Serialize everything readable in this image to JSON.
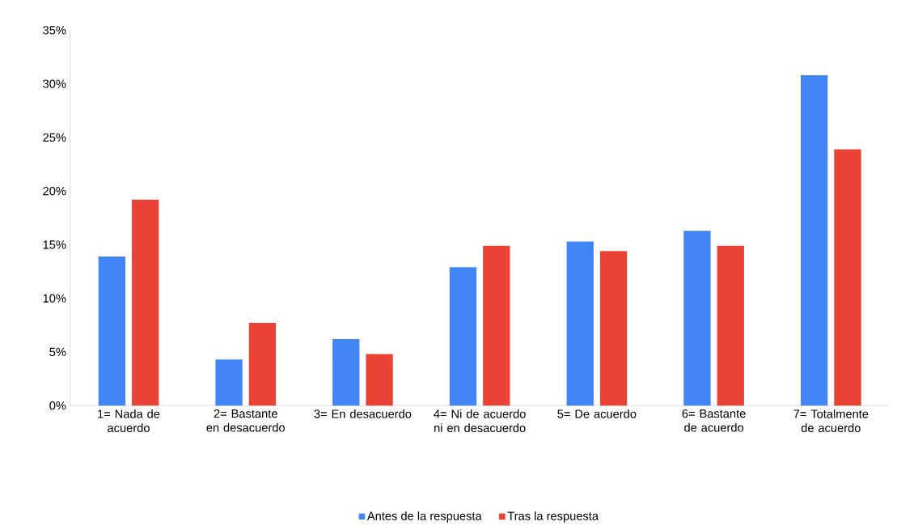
{
  "chart_data": {
    "type": "bar",
    "categories": [
      "1= Nada de acuerdo",
      "2= Bastante en desacuerdo",
      "3= En desacuerdo",
      "4= Ni de acuerdo ni en desacuerdo",
      "5= De acuerdo",
      "6= Bastante de acuerdo",
      "7= Totalmente de acuerdo"
    ],
    "series": [
      {
        "name": "Antes de la respuesta",
        "color": "#4285f4",
        "values": [
          13.9,
          4.3,
          6.2,
          12.9,
          15.3,
          16.3,
          30.8
        ]
      },
      {
        "name": "Tras la respuesta",
        "color": "#ea4335",
        "values": [
          19.2,
          7.7,
          4.8,
          14.9,
          14.4,
          14.9,
          23.9
        ]
      }
    ],
    "ylim": [
      0,
      35
    ],
    "yticks": [
      {
        "value": 0,
        "label": "0%"
      },
      {
        "value": 5,
        "label": "5%"
      },
      {
        "value": 10,
        "label": "10%"
      },
      {
        "value": 15,
        "label": "15%"
      },
      {
        "value": 20,
        "label": "20%"
      },
      {
        "value": 25,
        "label": "25%"
      },
      {
        "value": 30,
        "label": "30%"
      },
      {
        "value": 35,
        "label": "35%"
      }
    ],
    "grid": false,
    "legend": "bottom"
  }
}
